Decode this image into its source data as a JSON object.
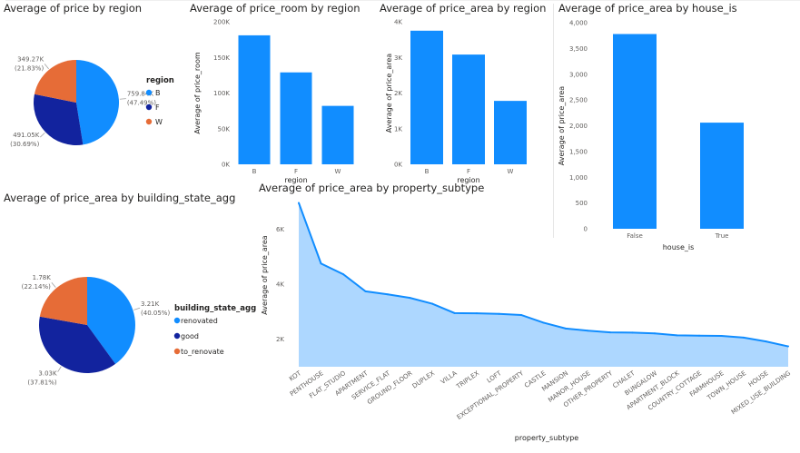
{
  "colors": {
    "B": "#118DFF",
    "F": "#12239E",
    "W": "#E66C37",
    "area_line": "#118DFF",
    "area_fill": "#a9d5ff"
  },
  "v1": {
    "title": "Average of price by region"
  },
  "v2": {
    "title": "Average of price_room by region"
  },
  "v3": {
    "title": "Average of price_area by region"
  },
  "v4": {
    "title": "Average of price_area by house_is"
  },
  "v5": {
    "title": "Average of price_area by building_state_agg"
  },
  "v6": {
    "title": "Average of price_area by property_subtype"
  },
  "chart_data": [
    {
      "type": "pie",
      "title": "Average of price by region",
      "legend_title": "region",
      "legend_position": "right",
      "categories": [
        "B",
        "F",
        "W"
      ],
      "values": [
        759840,
        491050,
        349270
      ],
      "labels": [
        "759.84K",
        "491.05K",
        "349.27K"
      ],
      "percents": [
        "(47.49%)",
        "(30.69%)",
        "(21.83%)"
      ]
    },
    {
      "type": "bar",
      "title": "Average of price_room by region",
      "xlabel": "region",
      "ylabel": "Average of price_room",
      "categories": [
        "B",
        "F",
        "W"
      ],
      "values": [
        181000,
        129000,
        82000
      ],
      "ylim": [
        0,
        200000
      ],
      "yticks": [
        0,
        50000,
        100000,
        150000,
        200000
      ],
      "ytick_labels": [
        "0K",
        "50K",
        "100K",
        "150K",
        "200K"
      ]
    },
    {
      "type": "bar",
      "title": "Average of price_area by region",
      "xlabel": "region",
      "ylabel": "Average of price_area",
      "categories": [
        "B",
        "F",
        "W"
      ],
      "values": [
        3750,
        3080,
        1780
      ],
      "ylim": [
        0,
        4000
      ],
      "yticks": [
        0,
        1000,
        2000,
        3000,
        4000
      ],
      "ytick_labels": [
        "0K",
        "1K",
        "2K",
        "3K",
        "4K"
      ]
    },
    {
      "type": "bar",
      "title": "Average of price_area by house_is",
      "xlabel": "house_is",
      "ylabel": "Average of price_area",
      "categories": [
        "False",
        "True"
      ],
      "values": [
        3780,
        2060
      ],
      "ylim": [
        0,
        4000
      ],
      "yticks": [
        0,
        500,
        1000,
        1500,
        2000,
        2500,
        3000,
        3500,
        4000
      ],
      "ytick_labels": [
        "0",
        "500",
        "1,000",
        "1,500",
        "2,000",
        "2,500",
        "3,000",
        "3,500",
        "4,000"
      ]
    },
    {
      "type": "pie",
      "title": "Average of price_area by building_state_agg",
      "legend_title": "building_state_agg",
      "legend_position": "right",
      "categories": [
        "renovated",
        "good",
        "to_renovate"
      ],
      "values": [
        3210,
        3030,
        1780
      ],
      "labels": [
        "3.21K",
        "3.03K",
        "1.78K"
      ],
      "percents": [
        "(40.05%)",
        "(37.81%)",
        "(22.14%)"
      ]
    },
    {
      "type": "area",
      "title": "Average of price_area by property_subtype",
      "xlabel": "property_subtype",
      "ylabel": "Average of price_area",
      "categories": [
        "KOT",
        "PENTHOUSE",
        "FLAT_STUDIO",
        "APARTMENT",
        "SERVICE_FLAT",
        "GROUND_FLOOR",
        "DUPLEX",
        "VILLA",
        "TRIPLEX",
        "LOFT",
        "EXCEPTIONAL_PROPERTY",
        "CASTLE",
        "MANSION",
        "MANOR_HOUSE",
        "OTHER_PROPERTY",
        "CHALET",
        "BUNGALOW",
        "APARTMENT_BLOCK",
        "COUNTRY_COTTAGE",
        "FARMHOUSE",
        "TOWN_HOUSE",
        "HOUSE",
        "MIXED_USE_BUILDING"
      ],
      "values": [
        6950,
        4750,
        4360,
        3740,
        3630,
        3500,
        3290,
        2950,
        2940,
        2920,
        2880,
        2600,
        2390,
        2310,
        2250,
        2240,
        2210,
        2140,
        2130,
        2120,
        2060,
        1920,
        1740
      ],
      "ylim": [
        1000,
        7000
      ],
      "yticks": [
        2000,
        4000,
        6000
      ],
      "ytick_labels": [
        "2K",
        "4K",
        "6K"
      ]
    }
  ]
}
